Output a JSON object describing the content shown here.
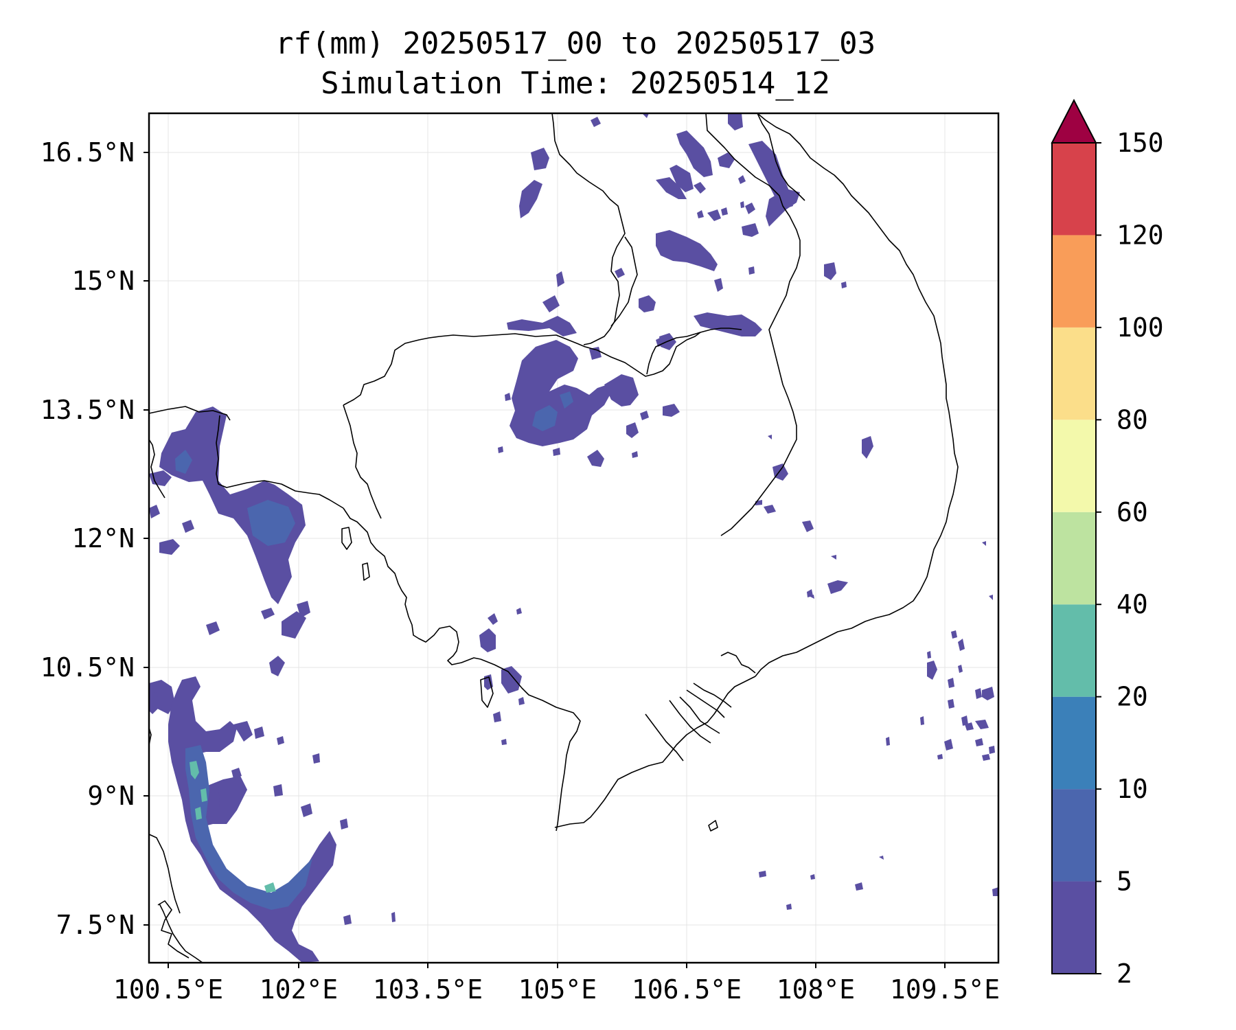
{
  "title": {
    "line1": "rf(mm) 20250517_00 to 20250517_03",
    "line2": "Simulation Time: 20250514_12"
  },
  "map": {
    "lon_ticks": [
      "100.5°E",
      "102°E",
      "103.5°E",
      "105°E",
      "106.5°E",
      "108°E",
      "109.5°E"
    ],
    "lat_ticks": [
      "16.5°N",
      "15°N",
      "13.5°N",
      "12°N",
      "10.5°N",
      "9°N",
      "7.5°N"
    ],
    "gridlines": true
  },
  "colorbar": {
    "levels": [
      "2",
      "5",
      "10",
      "20",
      "40",
      "60",
      "80",
      "100",
      "120",
      "150"
    ],
    "colors": [
      "#5a4fa2",
      "#4b66ae",
      "#3b80b9",
      "#63bdaa",
      "#bde3a0",
      "#f3f9ab",
      "#fbde8a",
      "#f99d59",
      "#d7424b",
      "#9e0142"
    ],
    "extend": "max",
    "extend_color": "#9e0142"
  },
  "colors": {
    "rain_low": "#5a4fa2",
    "rain_mid": "#4b66ae",
    "rain_high": "#63bdaa"
  }
}
